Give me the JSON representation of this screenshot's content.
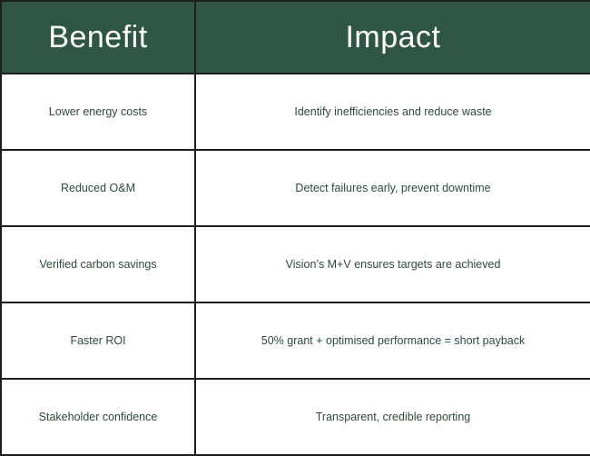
{
  "table": {
    "headers": {
      "benefit": "Benefit",
      "impact": "Impact"
    },
    "rows": [
      {
        "benefit": "Lower energy costs",
        "impact": "Identify inefficiencies and reduce waste"
      },
      {
        "benefit": "Reduced O&M",
        "impact": "Detect failures early, prevent downtime"
      },
      {
        "benefit": "Verified carbon savings",
        "impact": "Vision’s M+V ensures targets are achieved"
      },
      {
        "benefit": "Faster ROI",
        "impact": "50% grant + optimised performance = short payback"
      },
      {
        "benefit": "Stakeholder confidence",
        "impact": "Transparent, credible reporting"
      }
    ]
  },
  "colors": {
    "header_background": "#2f5642",
    "header_text": "#ffffff",
    "body_text": "#2e4a3a",
    "border": "#1e1e1e"
  }
}
